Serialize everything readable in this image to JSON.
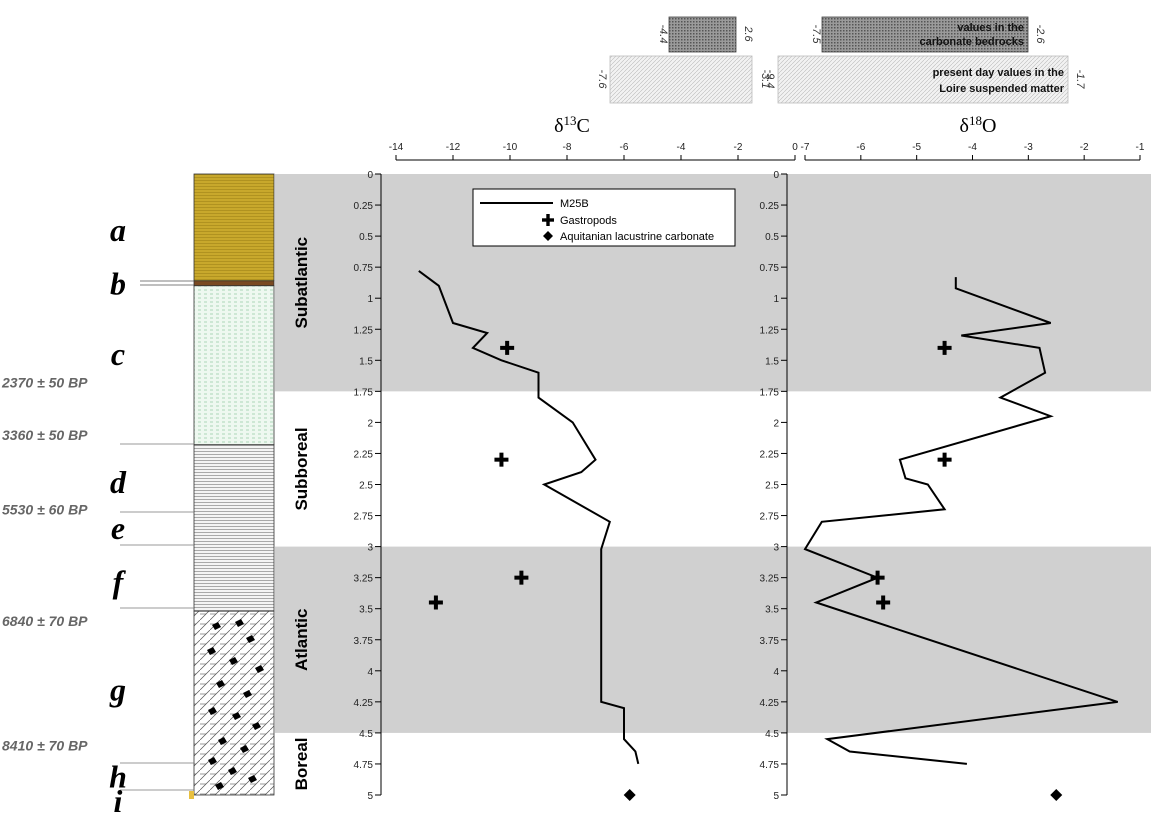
{
  "chart_data": [
    {
      "type": "line",
      "title": "δ13C",
      "title_main": "δ",
      "title_sup": "13",
      "title_elem": "C",
      "xlim": [
        -14,
        0
      ],
      "x_ticks": [
        "-14",
        "-12",
        "-10",
        "-8",
        "-6",
        "-4",
        "-2",
        "0"
      ],
      "ylim": [
        0,
        5
      ],
      "y_ticks": [
        "0",
        "0.25",
        "0.5",
        "0.75",
        "1",
        "1.25",
        "1.5",
        "1.75",
        "2",
        "2.25",
        "2.5",
        "2.75",
        "3",
        "3.25",
        "3.5",
        "3.75",
        "4",
        "4.25",
        "4.5",
        "4.75",
        "5"
      ],
      "series": [
        {
          "name": "M25B",
          "style": "line",
          "points": [
            [
              -13.2,
              0.78
            ],
            [
              -12.5,
              0.9
            ],
            [
              -12.0,
              1.2
            ],
            [
              -10.8,
              1.28
            ],
            [
              -11.3,
              1.4
            ],
            [
              -10.3,
              1.5
            ],
            [
              -9.0,
              1.6
            ],
            [
              -9.0,
              1.8
            ],
            [
              -7.8,
              2.0
            ],
            [
              -7.0,
              2.3
            ],
            [
              -7.5,
              2.4
            ],
            [
              -8.8,
              2.5
            ],
            [
              -6.5,
              2.8
            ],
            [
              -6.8,
              3.02
            ],
            [
              -6.8,
              3.5
            ],
            [
              -6.8,
              3.75
            ],
            [
              -6.8,
              4.0
            ],
            [
              -6.8,
              4.25
            ],
            [
              -6.0,
              4.3
            ],
            [
              -6.0,
              4.55
            ],
            [
              -5.6,
              4.65
            ],
            [
              -5.5,
              4.75
            ]
          ]
        },
        {
          "name": "Gastropods",
          "style": "plus",
          "points": [
            [
              -10.1,
              1.4
            ],
            [
              -10.3,
              2.3
            ],
            [
              -9.6,
              3.25
            ],
            [
              -12.6,
              3.45
            ]
          ]
        },
        {
          "name": "Aquitanian lacustrine carbonate",
          "style": "diamond",
          "points": [
            [
              -5.8,
              5.0
            ]
          ]
        }
      ],
      "legend": {
        "position": "top-center",
        "entries": [
          "M25B",
          "Gastropods",
          "Aquitanian lacustrine carbonate"
        ]
      },
      "reference_bars": [
        {
          "min_label": "-4.4",
          "max_label": "2.6",
          "pattern": "dark",
          "row": "top"
        },
        {
          "min_label": "-7.6",
          "max_label": "-3.1",
          "pattern": "light",
          "row": "bottom"
        }
      ]
    },
    {
      "type": "line",
      "title": "δ18O",
      "title_main": "δ",
      "title_sup": "18",
      "title_elem": "O",
      "xlim": [
        -7,
        -1
      ],
      "x_ticks": [
        "-7",
        "-6",
        "-5",
        "-4",
        "-3",
        "-2",
        "-1"
      ],
      "ylim": [
        0,
        5
      ],
      "y_ticks": [
        "0",
        "0.25",
        "0.5",
        "0.75",
        "1",
        "1.25",
        "1.5",
        "1.75",
        "2",
        "2.25",
        "2.5",
        "2.75",
        "3",
        "3.25",
        "3.5",
        "3.75",
        "4",
        "4.25",
        "4.5",
        "4.75",
        "5"
      ],
      "series": [
        {
          "name": "M25B",
          "style": "line",
          "points": [
            [
              -4.3,
              0.83
            ],
            [
              -4.3,
              0.92
            ],
            [
              -2.6,
              1.2
            ],
            [
              -4.2,
              1.3
            ],
            [
              -2.8,
              1.4
            ],
            [
              -2.7,
              1.6
            ],
            [
              -3.5,
              1.8
            ],
            [
              -2.6,
              1.95
            ],
            [
              -5.3,
              2.3
            ],
            [
              -5.2,
              2.45
            ],
            [
              -4.8,
              2.5
            ],
            [
              -4.5,
              2.7
            ],
            [
              -6.7,
              2.8
            ],
            [
              -7.0,
              3.02
            ],
            [
              -5.7,
              3.25
            ],
            [
              -6.8,
              3.45
            ],
            [
              -1.4,
              4.25
            ],
            [
              -6.6,
              4.55
            ],
            [
              -6.2,
              4.65
            ],
            [
              -4.1,
              4.75
            ]
          ]
        },
        {
          "name": "Gastropods",
          "style": "plus",
          "points": [
            [
              -4.5,
              1.4
            ],
            [
              -4.5,
              2.3
            ],
            [
              -5.7,
              3.25
            ],
            [
              -5.6,
              3.45
            ]
          ]
        },
        {
          "name": "Aquitanian lacustrine carbonate",
          "style": "diamond",
          "points": [
            [
              -2.5,
              5.0
            ]
          ]
        }
      ],
      "reference_bars": [
        {
          "min_label": "-7.5",
          "max_label": "-2.6",
          "pattern": "dark",
          "row": "top",
          "label_line1": "values in the",
          "label_line2": "carbonate bedrocks"
        },
        {
          "min_label": "-9.4",
          "max_label": "-1.7",
          "pattern": "light",
          "row": "bottom",
          "label_line1": "present day values in the",
          "label_line2": "Loire suspended matter"
        }
      ]
    }
  ],
  "periods": [
    {
      "name": "Subatlantic",
      "from": 0,
      "to": 1.75,
      "shaded": true
    },
    {
      "name": "Subboreal",
      "from": 1.75,
      "to": 3.0,
      "shaded": false
    },
    {
      "name": "Atlantic",
      "from": 3.0,
      "to": 4.5,
      "shaded": true
    },
    {
      "name": "Boreal",
      "from": 4.5,
      "to": 5.0,
      "shaded": false
    }
  ],
  "units": [
    {
      "label": "a",
      "depth": 0.45
    },
    {
      "label": "b",
      "depth": 0.88
    },
    {
      "label": "c",
      "depth": 1.45
    },
    {
      "label": "d",
      "depth": 2.48
    },
    {
      "label": "e",
      "depth": 2.85
    },
    {
      "label": "f",
      "depth": 3.28
    },
    {
      "label": "g",
      "depth": 4.15
    },
    {
      "label": "h",
      "depth": 4.85
    },
    {
      "label": "i",
      "depth": 5.1
    }
  ],
  "dates": [
    {
      "label": "2370 ± 50 BP",
      "depth": 1.68
    },
    {
      "label": "3360 ± 50 BP",
      "depth": 2.1
    },
    {
      "label": "5530 ± 60 BP",
      "depth": 2.7
    },
    {
      "label": "6840 ± 70 BP",
      "depth": 3.6
    },
    {
      "label": "8410 ± 70 BP",
      "depth": 4.6
    }
  ],
  "colors": {
    "band": "#d0d0d0",
    "unit_a": "#c8a82c",
    "unit_b": "#7a4a22",
    "unit_c": "#eef8f0",
    "unit_i": "#e8c040",
    "line": "#000000"
  }
}
